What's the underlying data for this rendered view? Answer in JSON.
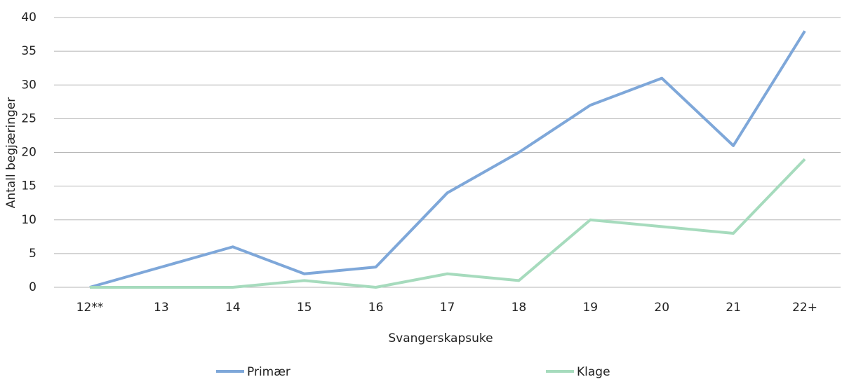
{
  "chart_data": {
    "type": "line",
    "y_label": "Antall begjæringer",
    "x_label": "Svangerskapsuke",
    "categories": [
      "12**",
      "13",
      "14",
      "15",
      "16",
      "17",
      "18",
      "19",
      "20",
      "21",
      "22+"
    ],
    "series": [
      {
        "name": "Primær",
        "color": "#7ea7d9",
        "values": [
          0,
          3,
          6,
          2,
          3,
          14,
          20,
          27,
          31,
          21,
          38
        ]
      },
      {
        "name": "Klage",
        "color": "#a6dbbd",
        "values": [
          0,
          0,
          0,
          1,
          0,
          2,
          1,
          10,
          9,
          8,
          19
        ]
      }
    ],
    "ylim": [
      0,
      40
    ],
    "yticks": [
      0,
      5,
      10,
      15,
      20,
      25,
      30,
      35,
      40
    ],
    "grid": true
  }
}
